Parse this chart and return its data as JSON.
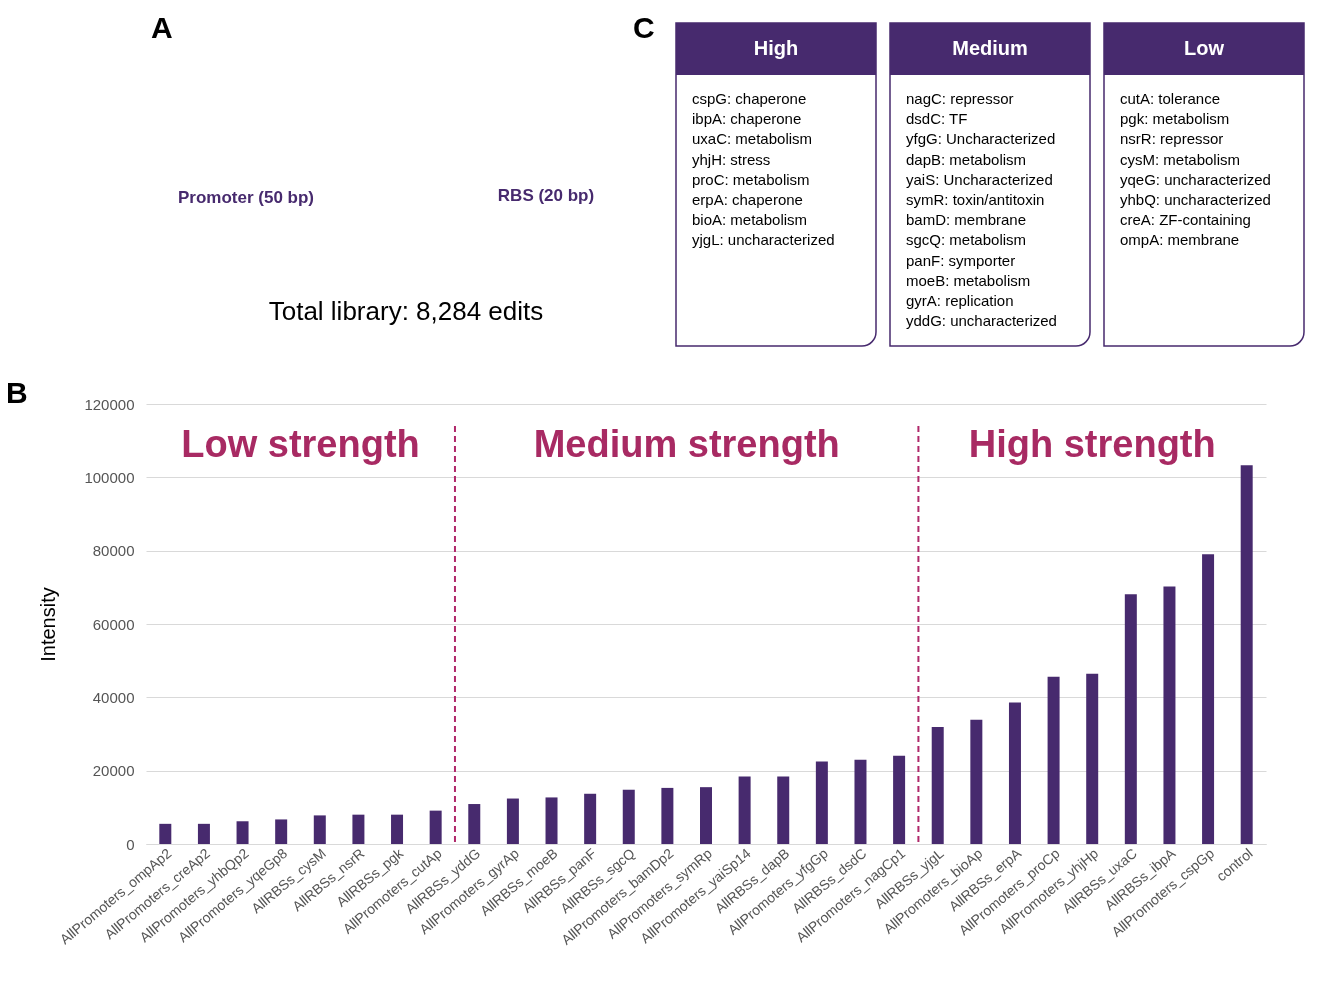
{
  "chart_data": [
    {
      "type": "other",
      "annotations": [
        "A",
        "Promoter (50 bp)",
        "RBS (20 bp)",
        "Total library:  8,284 edits"
      ]
    },
    {
      "type": "other",
      "annotations": [
        "C"
      ]
    },
    {
      "type": "other",
      "title": "High",
      "annotations": [
        "cspG: chaperone",
        "ibpA: chaperone",
        "uxaC: metabolism",
        "yhjH: stress",
        "proC: metabolism",
        "erpA: chaperone",
        "bioA: metabolism",
        "yjgL: uncharacterized"
      ]
    },
    {
      "type": "other",
      "title": "Medium",
      "annotations": [
        "nagC: repressor",
        "dsdC: TF",
        "yfgG: Uncharacterized",
        "dapB: metabolism",
        "yaiS: Uncharacterized",
        "symR: toxin/antitoxin",
        "bamD: membrane",
        "sgcQ: metabolism",
        "panF: symporter",
        "moeB: metabolism",
        "gyrA: replication",
        "yddG: uncharacterized"
      ]
    },
    {
      "type": "other",
      "title": "Low",
      "annotations": [
        "cutA: tolerance",
        "pgk: metabolism",
        "nsrR: repressor",
        "cysM: metabolism",
        "yqeG: uncharacterized",
        "yhbQ: uncharacterized",
        "creA: ZF-containing",
        "ompA: membrane"
      ]
    },
    {
      "type": "bar",
      "ylabel": "Intensity",
      "ylim": [
        0,
        120000
      ],
      "yticks": [
        0,
        20000,
        40000,
        60000,
        80000,
        100000,
        120000
      ],
      "grid": "y",
      "categories": [
        "AllPromoters_ompAp2",
        "AllPromoters_creAp2",
        "AllPromoters_yhbQp2",
        "AllPromoters_yqeGp8",
        "AllRBSs_cysM",
        "AllRBSs_nsrR",
        "AllRBSs_pgk",
        "AllPromoters_cutAp",
        "AllRBSs_yddG",
        "AllPromoters_gyrAp",
        "AllRBSs_moeB",
        "AllRBSs_panF",
        "AllRBSs_sgcQ",
        "AllPromoters_bamDp2",
        "AllPromoters_symRp",
        "AllPromoters_yaiSp14",
        "AllRBSs_dapB",
        "AllPromoters_yfgGp",
        "AllRBSs_dsdC",
        "AllPromoters_nagCp1",
        "AllRBSs_yjgL",
        "AllPromoters_bioAp",
        "AllRBSs_erpA",
        "AllPromoters_proCp",
        "AllPromoters_yhjHp",
        "AllRBSs_uxaC",
        "AllRBSs_ibpA",
        "AllPromoters_cspGp",
        "control"
      ],
      "series": [
        {
          "color": "#472a6e",
          "values": [
            5500,
            5500,
            6200,
            6700,
            7800,
            8000,
            8000,
            9100,
            10900,
            12400,
            12700,
            13700,
            14800,
            15300,
            15500,
            18400,
            18400,
            22500,
            23000,
            24100,
            31900,
            33900,
            38600,
            45600,
            46400,
            68100,
            70200,
            79000,
            103300
          ]
        }
      ],
      "annotations": [
        "B",
        "Low strength",
        "Medium strength",
        "High strength"
      ]
    }
  ]
}
